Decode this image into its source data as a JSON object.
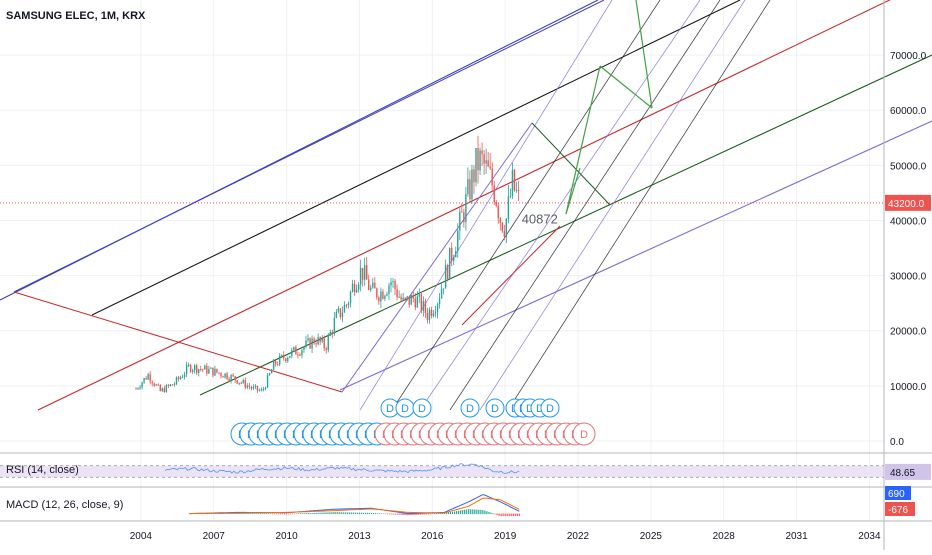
{
  "header": {
    "title": "SAMSUNG ELEC, 1M, KRX"
  },
  "colors": {
    "up": "#26a69a",
    "down": "#ef5350",
    "grid": "#eef0f3",
    "price_line": "#ef5350",
    "rsi": "#5b9cf6",
    "rsi_band": "#ede3f7",
    "macd": "#2962ff",
    "signal": "#ff6d00",
    "fork_blue": "#3f3fbf",
    "fork_black": "#1a1a1a",
    "fork_red": "#c62828",
    "fork_green": "#1b5e20",
    "fork_violet": "#7e6bd6",
    "arrow_green": "#43a047",
    "event_blue": "#2196f3",
    "event_red": "#e57373"
  },
  "icons": {
    "dividend": "circle-D-icon",
    "earnings": "circle-E-icon"
  },
  "chart_data": [
    {
      "type": "candlestick",
      "title": "SAMSUNG ELEC, 1M, KRX",
      "interval": "1M",
      "x_tick_labels": [
        "2004",
        "2007",
        "2010",
        "2013",
        "2016",
        "2019",
        "2022",
        "2025",
        "2028",
        "2031",
        "2034"
      ],
      "x_ticks": [
        2004,
        2007,
        2010,
        2013,
        2016,
        2019,
        2022,
        2025,
        2028,
        2031,
        2034
      ],
      "y_tick_labels": [
        "0.0",
        "10000.0",
        "20000.0",
        "30000.0",
        "40000.0",
        "50000.0",
        "60000.0",
        "70000.0"
      ],
      "y_ticks": [
        0,
        10000,
        20000,
        30000,
        40000,
        50000,
        60000,
        70000
      ],
      "ylim": [
        -2000,
        80000
      ],
      "xlim": [
        1998.2,
        2034.6
      ],
      "last_price": 43200,
      "last_price_label": "43200.0",
      "annotation": {
        "text": "40872",
        "x": 2019.6,
        "y": 40872
      },
      "series_path": [
        [
          2003.8,
          9500
        ],
        [
          2004.3,
          12000
        ],
        [
          2004.8,
          9000
        ],
        [
          2005.4,
          10500
        ],
        [
          2006.0,
          13500
        ],
        [
          2006.8,
          12800
        ],
        [
          2007.5,
          12000
        ],
        [
          2008.0,
          11000
        ],
        [
          2008.6,
          9500
        ],
        [
          2009.0,
          9000
        ],
        [
          2009.5,
          14000
        ],
        [
          2010.0,
          15500
        ],
        [
          2010.7,
          17000
        ],
        [
          2011.2,
          18500
        ],
        [
          2011.6,
          17000
        ],
        [
          2012.0,
          22000
        ],
        [
          2012.5,
          25000
        ],
        [
          2012.8,
          29000
        ],
        [
          2013.1,
          31000
        ],
        [
          2013.5,
          27000
        ],
        [
          2013.9,
          27000
        ],
        [
          2014.3,
          29000
        ],
        [
          2014.8,
          25000
        ],
        [
          2015.3,
          26000
        ],
        [
          2015.8,
          23000
        ],
        [
          2016.2,
          25500
        ],
        [
          2016.6,
          31000
        ],
        [
          2017.0,
          37000
        ],
        [
          2017.4,
          43500
        ],
        [
          2017.8,
          50000
        ],
        [
          2018.0,
          51000
        ],
        [
          2018.3,
          48500
        ],
        [
          2018.6,
          45000
        ],
        [
          2018.8,
          40500
        ],
        [
          2019.0,
          39000
        ],
        [
          2019.3,
          46500
        ],
        [
          2019.6,
          43200
        ]
      ],
      "grid": true
    },
    {
      "type": "line",
      "title": "RSI (14, close)",
      "last_value": 48.65,
      "last_value_label": "48.65",
      "band": [
        30,
        70
      ],
      "ylim": [
        0,
        100
      ],
      "x": [
        2005.0,
        2006.0,
        2007.0,
        2008.0,
        2009.0,
        2010.0,
        2011.0,
        2012.0,
        2013.0,
        2014.0,
        2015.0,
        2016.0,
        2017.0,
        2017.8,
        2018.5,
        2019.0,
        2019.6
      ],
      "values": [
        55,
        60,
        52,
        48,
        58,
        62,
        55,
        62,
        57,
        52,
        50,
        56,
        72,
        75,
        52,
        48,
        48.65
      ]
    },
    {
      "type": "line",
      "title": "MACD (12, 26, close, 9)",
      "value_labels": [
        "690",
        "-676"
      ],
      "series": [
        {
          "name": "MACD",
          "x": [
            2006.0,
            2008.0,
            2010.0,
            2012.0,
            2013.5,
            2015.0,
            2016.5,
            2017.5,
            2018.1,
            2018.8,
            2019.6
          ],
          "values": [
            0,
            400,
            300,
            1500,
            1800,
            0,
            400,
            4000,
            6500,
            4000,
            690
          ]
        },
        {
          "name": "Signal",
          "x": [
            2006.0,
            2008.0,
            2010.0,
            2012.0,
            2013.5,
            2015.0,
            2016.5,
            2017.5,
            2018.1,
            2018.8,
            2019.6
          ],
          "values": [
            0,
            200,
            400,
            1000,
            1600,
            400,
            200,
            2500,
            5300,
            4700,
            1366
          ]
        }
      ],
      "ylim": [
        -1500,
        8000
      ]
    }
  ]
}
